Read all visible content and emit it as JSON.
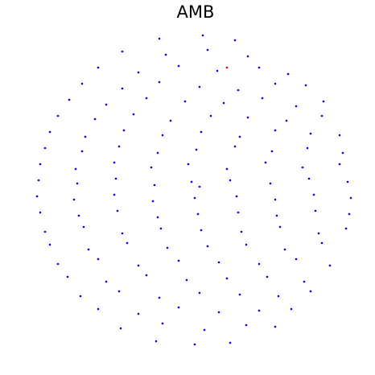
{
  "chart_data": {
    "type": "scatter",
    "title": "AMB",
    "xlim": [
      -1.0,
      1.0
    ],
    "ylim": [
      -1.0,
      1.0
    ],
    "series": [
      {
        "color": "#0000ff",
        "x": [
          -0.22,
          0.05,
          0.25,
          -0.45,
          -0.18,
          0.08,
          0.33,
          -0.6,
          -0.35,
          -0.1,
          0.14,
          0.4,
          0.58,
          -0.7,
          -0.45,
          -0.22,
          0.03,
          0.27,
          0.5,
          0.69,
          -0.78,
          -0.55,
          -0.3,
          -0.06,
          0.18,
          0.42,
          0.63,
          0.8,
          -0.85,
          -0.62,
          -0.38,
          -0.15,
          0.1,
          0.33,
          0.57,
          0.79,
          -0.9,
          -0.68,
          -0.44,
          -0.2,
          0.04,
          0.28,
          0.5,
          0.72,
          0.9,
          -0.93,
          -0.7,
          -0.47,
          -0.23,
          0.01,
          0.25,
          0.48,
          0.7,
          0.92,
          -0.96,
          -0.74,
          -0.5,
          -0.27,
          -0.04,
          0.2,
          0.44,
          0.67,
          0.9,
          -0.97,
          -0.73,
          -0.49,
          -0.25,
          -0.02,
          0.03,
          0.22,
          0.47,
          0.71,
          0.95,
          -0.98,
          -0.75,
          -0.5,
          -0.26,
          0.0,
          0.26,
          0.5,
          0.74,
          0.97,
          -0.96,
          -0.72,
          -0.48,
          -0.23,
          0.02,
          0.27,
          0.51,
          0.75,
          0.96,
          -0.93,
          -0.69,
          -0.45,
          -0.21,
          0.04,
          0.29,
          0.53,
          0.77,
          0.94,
          -0.9,
          -0.66,
          -0.42,
          -0.17,
          0.08,
          0.32,
          0.56,
          0.79,
          -0.85,
          -0.6,
          -0.35,
          -0.1,
          0.15,
          0.4,
          0.63,
          0.84,
          -0.79,
          -0.55,
          -0.3,
          -0.05,
          0.2,
          0.45,
          0.68,
          -0.71,
          -0.47,
          -0.22,
          0.03,
          0.28,
          0.52,
          0.72,
          -0.6,
          -0.35,
          -0.1,
          0.15,
          0.4,
          0.6,
          -0.46,
          -0.2,
          0.06,
          0.32,
          0.5,
          -0.24,
          0.0,
          0.22
        ],
        "y": [
          0.94,
          0.96,
          0.93,
          0.86,
          0.84,
          0.87,
          0.83,
          0.76,
          0.73,
          0.77,
          0.74,
          0.76,
          0.72,
          0.66,
          0.63,
          0.67,
          0.64,
          0.62,
          0.66,
          0.65,
          0.56,
          0.53,
          0.57,
          0.55,
          0.54,
          0.57,
          0.52,
          0.55,
          0.46,
          0.44,
          0.47,
          0.43,
          0.46,
          0.45,
          0.43,
          0.46,
          0.36,
          0.33,
          0.37,
          0.34,
          0.36,
          0.33,
          0.37,
          0.35,
          0.34,
          0.26,
          0.24,
          0.27,
          0.23,
          0.25,
          0.27,
          0.24,
          0.26,
          0.23,
          0.16,
          0.13,
          0.17,
          0.14,
          0.16,
          0.13,
          0.17,
          0.14,
          0.16,
          0.06,
          0.04,
          0.07,
          0.03,
          0.05,
          0.02,
          0.06,
          0.04,
          0.07,
          0.05,
          -0.04,
          -0.06,
          -0.03,
          -0.07,
          -0.05,
          -0.04,
          -0.06,
          -0.03,
          -0.05,
          -0.14,
          -0.16,
          -0.13,
          -0.17,
          -0.15,
          -0.14,
          -0.16,
          -0.13,
          -0.15,
          -0.26,
          -0.23,
          -0.27,
          -0.24,
          -0.25,
          -0.26,
          -0.23,
          -0.27,
          -0.24,
          -0.34,
          -0.37,
          -0.33,
          -0.36,
          -0.35,
          -0.34,
          -0.37,
          -0.33,
          -0.46,
          -0.43,
          -0.47,
          -0.44,
          -0.45,
          -0.46,
          -0.43,
          -0.47,
          -0.54,
          -0.57,
          -0.53,
          -0.56,
          -0.55,
          -0.54,
          -0.57,
          -0.66,
          -0.63,
          -0.67,
          -0.64,
          -0.65,
          -0.66,
          -0.63,
          -0.74,
          -0.77,
          -0.73,
          -0.76,
          -0.75,
          -0.74,
          -0.86,
          -0.83,
          -0.87,
          -0.84,
          -0.85,
          -0.94,
          -0.96,
          -0.95
        ]
      },
      {
        "color": "#ff0000",
        "x": [
          0.2
        ],
        "y": [
          0.76
        ]
      }
    ]
  }
}
